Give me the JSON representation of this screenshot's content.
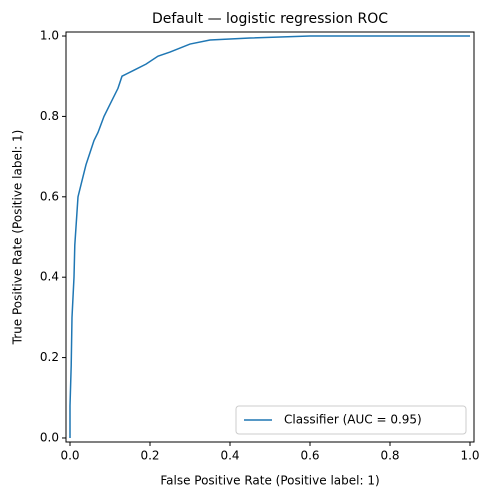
{
  "chart_data": {
    "type": "line",
    "title": "Default — logistic regression ROC",
    "xlabel": "False Positive Rate (Positive label: 1)",
    "ylabel": "True Positive Rate (Positive label: 1)",
    "x": [
      0,
      0,
      0.003,
      0.005,
      0.01,
      0.012,
      0.02,
      0.03,
      0.04,
      0.05,
      0.06,
      0.07,
      0.085,
      0.1,
      0.12,
      0.13,
      0.16,
      0.19,
      0.22,
      0.25,
      0.3,
      0.35,
      0.45,
      0.6,
      1.0
    ],
    "series": [
      {
        "name": "Classifier (AUC = 0.95)",
        "color": "#1f77b4",
        "values": [
          0,
          0.08,
          0.18,
          0.3,
          0.4,
          0.48,
          0.6,
          0.64,
          0.68,
          0.71,
          0.74,
          0.76,
          0.8,
          0.83,
          0.87,
          0.9,
          0.915,
          0.93,
          0.95,
          0.96,
          0.98,
          0.99,
          0.995,
          1.0,
          1.0
        ]
      }
    ],
    "xlim": [
      -0.01,
      1.01
    ],
    "ylim": [
      -0.01,
      1.01
    ],
    "xticks": [
      {
        "value": 0,
        "label": "0.0"
      },
      {
        "value": 0.2,
        "label": "0.2"
      },
      {
        "value": 0.4,
        "label": "0.4"
      },
      {
        "value": 0.6,
        "label": "0.6"
      },
      {
        "value": 0.8,
        "label": "0.8"
      },
      {
        "value": 1,
        "label": "1.0"
      }
    ],
    "yticks": [
      {
        "value": 0,
        "label": "0.0"
      },
      {
        "value": 0.2,
        "label": "0.2"
      },
      {
        "value": 0.4,
        "label": "0.4"
      },
      {
        "value": 0.6,
        "label": "0.6"
      },
      {
        "value": 0.8,
        "label": "0.8"
      },
      {
        "value": 1,
        "label": "1.0"
      }
    ],
    "grid": false,
    "legend": "lower right"
  }
}
